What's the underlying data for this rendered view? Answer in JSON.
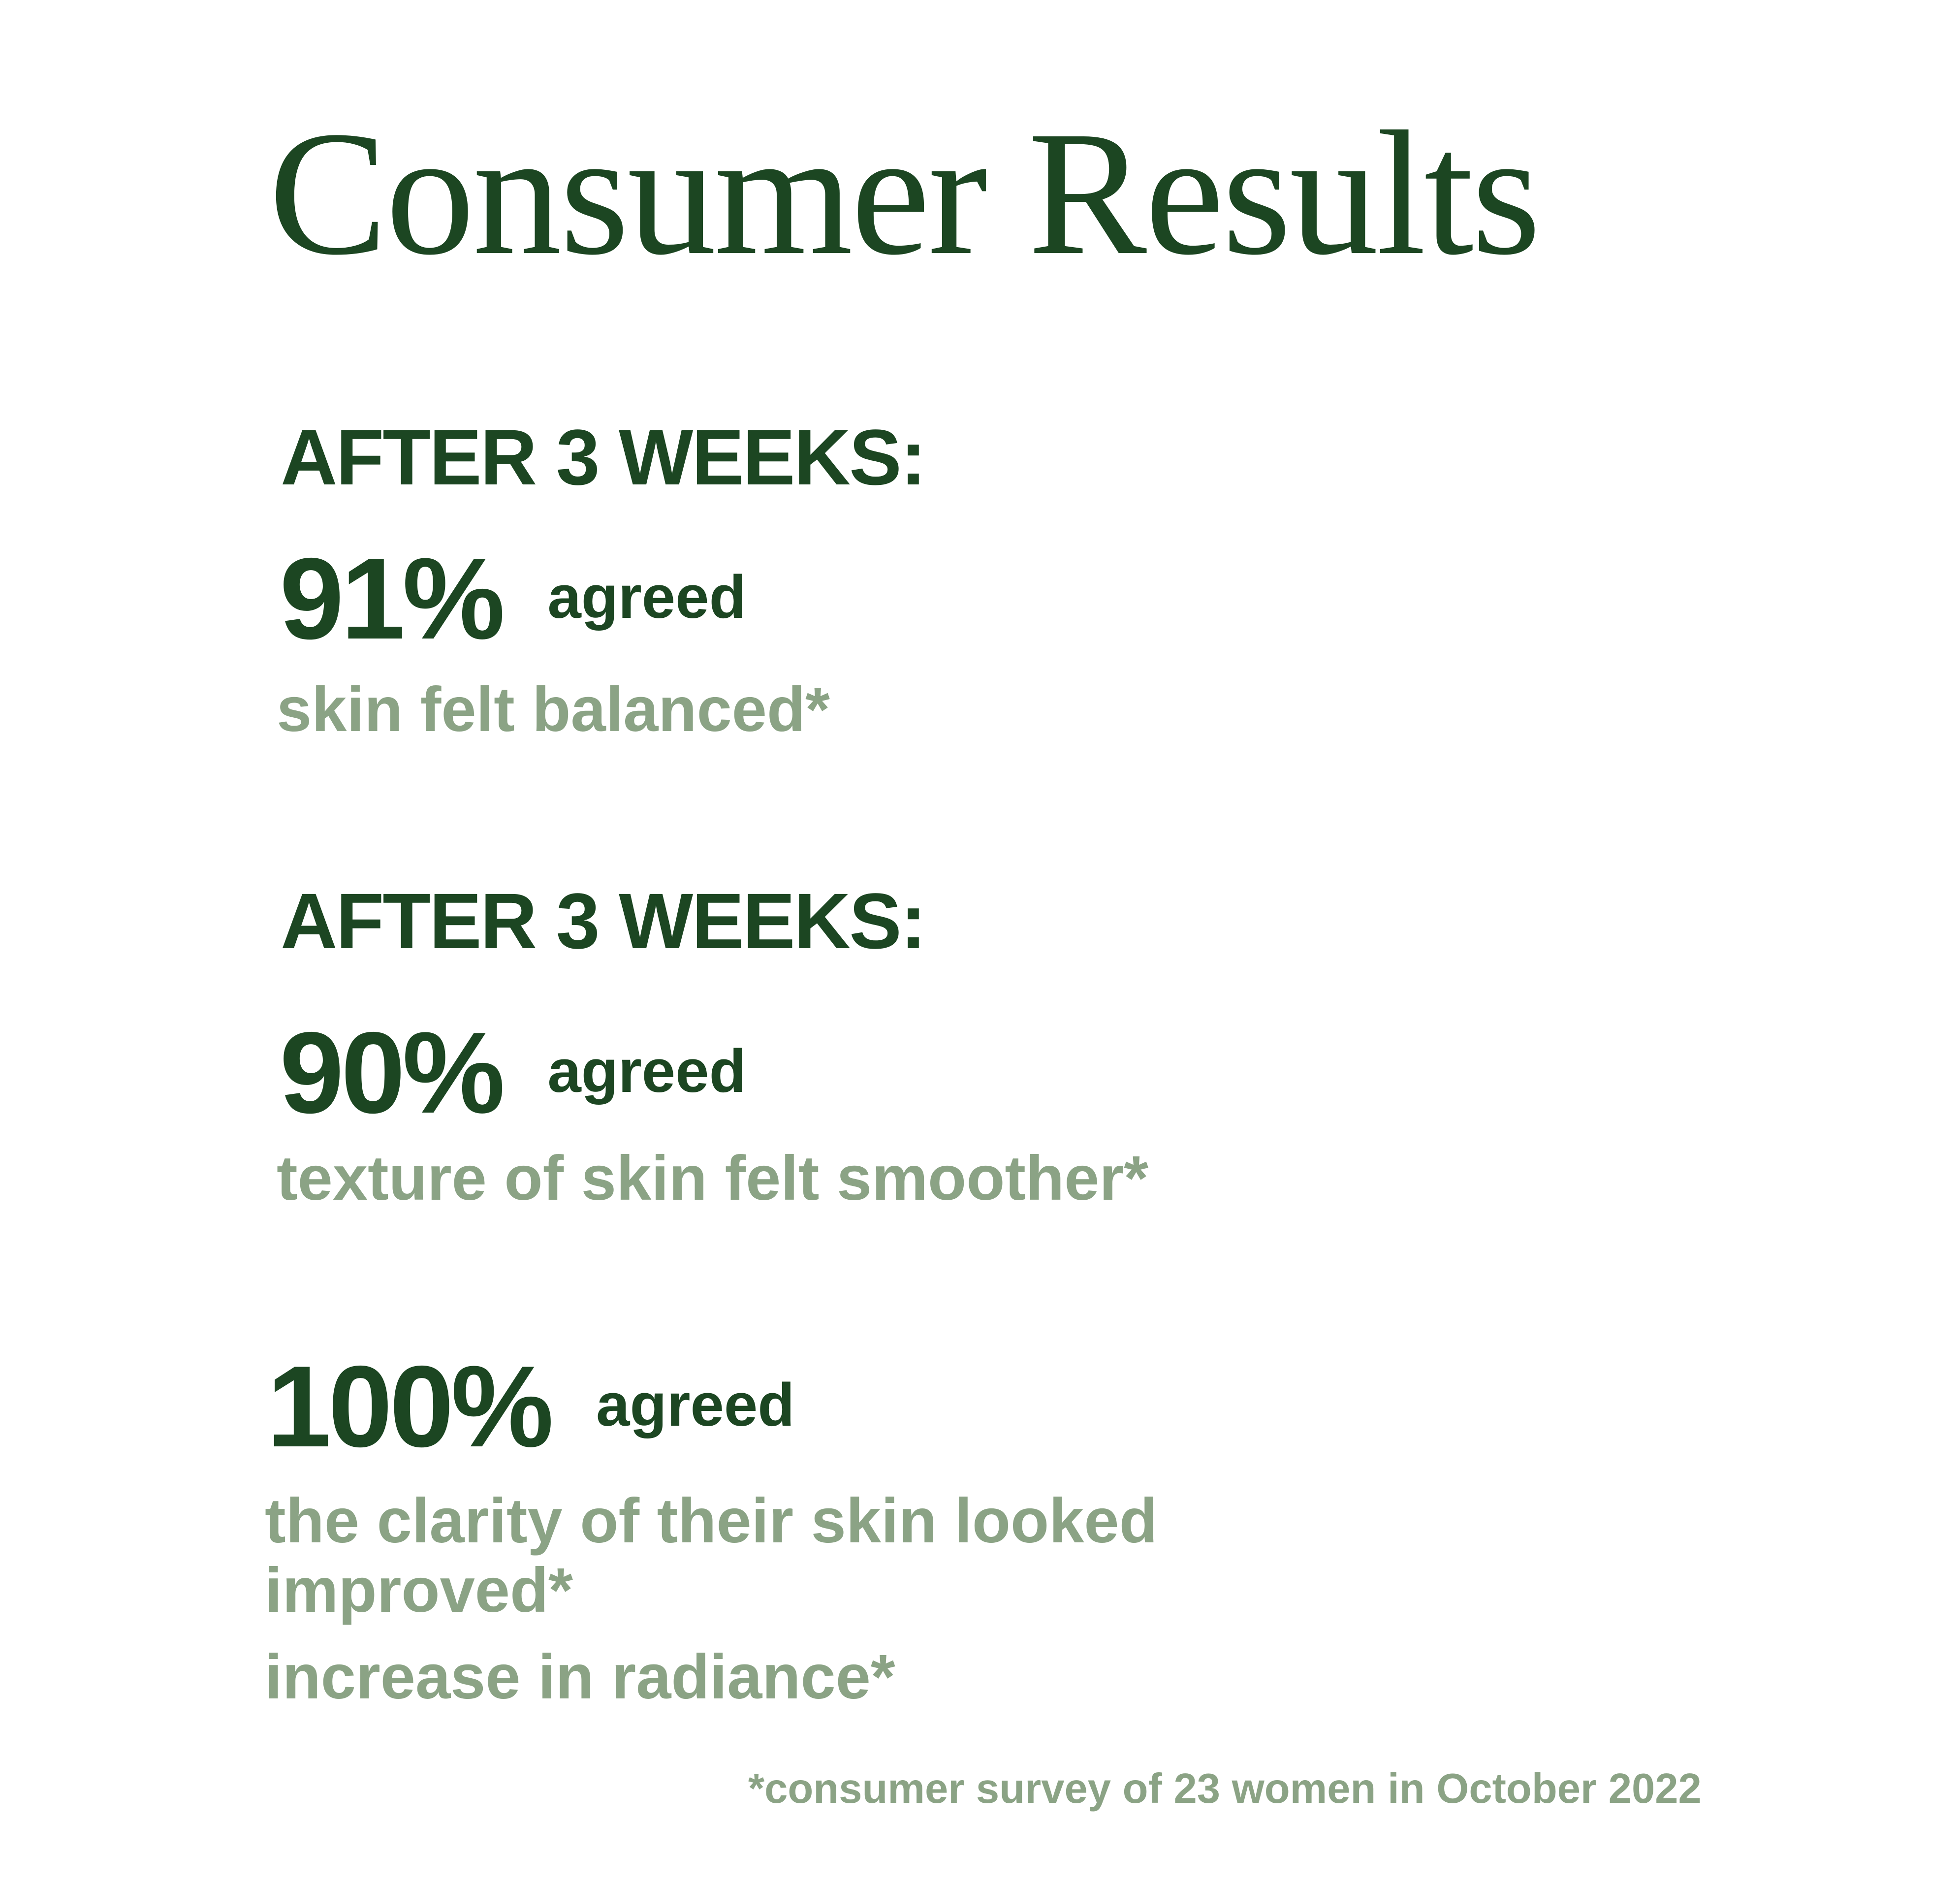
{
  "title": "Consumer Results",
  "sections": [
    {
      "kicker": "AFTER 3 WEEKS:",
      "value": "91%",
      "qualifier": "agreed",
      "description": "skin felt balanced*"
    },
    {
      "kicker": "AFTER 3 WEEKS:",
      "value": "90%",
      "qualifier": "agreed",
      "description": "texture of skin felt smoother*"
    },
    {
      "value": "100%",
      "qualifier": "agreed",
      "description_line_1": "the clarity of their skin looked improved*",
      "description_line_2": "increase in radiance*"
    }
  ],
  "footnote": "*consumer survey of 23 women in October 2022",
  "colors": {
    "dark_green": "#1c4622",
    "sage_green": "#8ba385",
    "background": "#ffffff"
  }
}
